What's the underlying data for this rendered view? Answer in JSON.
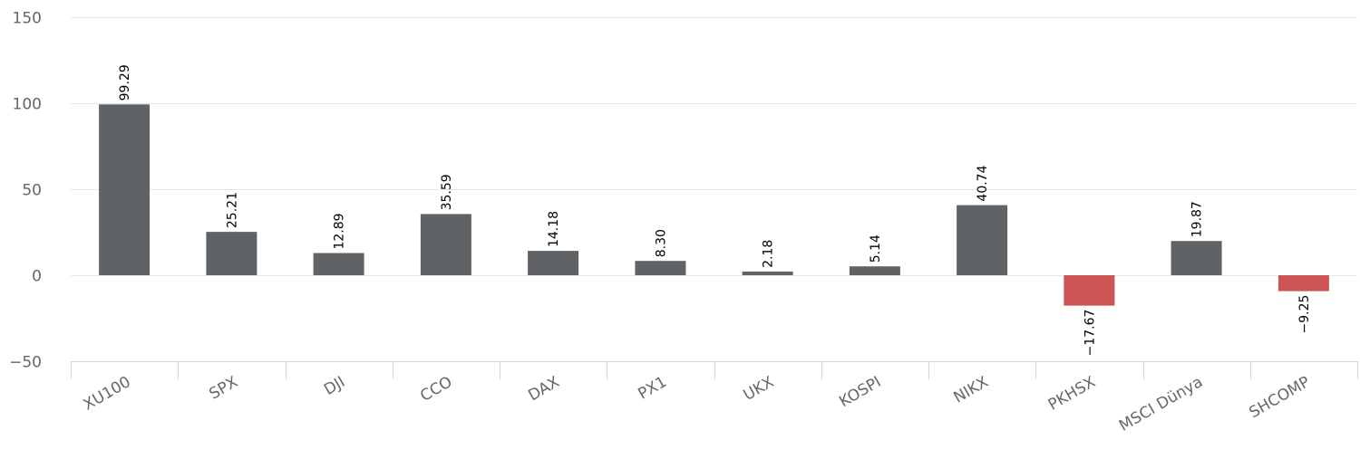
{
  "chart_data": {
    "type": "bar",
    "title": "",
    "xlabel": "",
    "ylabel": "",
    "categories": [
      "XU100",
      "SPX",
      "DJI",
      "CCO",
      "DAX",
      "PX1",
      "UKX",
      "KOSPI",
      "NIKX",
      "PKHSX",
      "MSCI Dünya",
      "SHCOMP"
    ],
    "values": [
      99.29,
      25.21,
      12.89,
      35.59,
      14.18,
      8.3,
      2.18,
      5.14,
      40.74,
      -17.67,
      19.87,
      -9.25
    ],
    "value_labels": [
      "99.29",
      "25.21",
      "12.89",
      "35.59",
      "14.18",
      "8.30",
      "2.18",
      "5.14",
      "40.74",
      "−17.67",
      "19.87",
      "−9.25"
    ],
    "ylim": [
      -50,
      150
    ],
    "yticks": [
      -50,
      0,
      50,
      100,
      150
    ],
    "ytick_labels": [
      "−50",
      "0",
      "50",
      "100",
      "150"
    ],
    "grid": true,
    "legend": "none",
    "colors": {
      "positive": "#606366",
      "negative": "#cd5454",
      "grid": "#e6e6e6",
      "axis": "#ccd6eb",
      "tick_text": "#666666",
      "label_text": "#000000"
    }
  }
}
